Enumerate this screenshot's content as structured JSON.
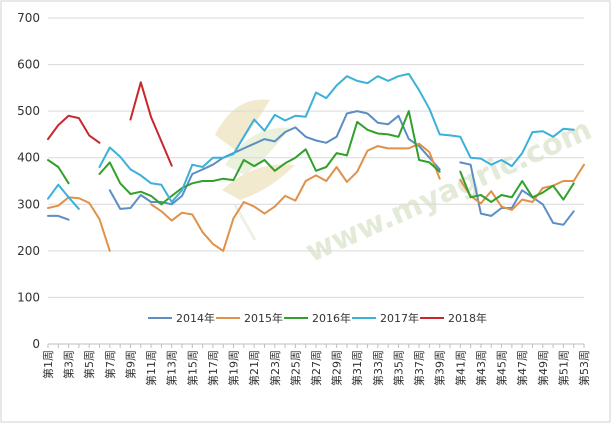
{
  "chart_data": {
    "type": "line",
    "ylim": [
      0,
      700
    ],
    "yticks": [
      "0",
      "100",
      "200",
      "300",
      "400",
      "500",
      "600",
      "700"
    ],
    "x": [
      1,
      2,
      3,
      4,
      5,
      6,
      7,
      8,
      9,
      10,
      11,
      12,
      13,
      14,
      15,
      16,
      17,
      18,
      19,
      20,
      21,
      22,
      23,
      24,
      25,
      26,
      27,
      28,
      29,
      30,
      31,
      32,
      33,
      34,
      35,
      36,
      37,
      38,
      39,
      40,
      41,
      42,
      43,
      44,
      45,
      46,
      47,
      48,
      49,
      50,
      51,
      52,
      53
    ],
    "xtick_labels": [
      "第1周",
      "第3周",
      "第5周",
      "第7周",
      "第9周",
      "第11周",
      "第13周",
      "第15周",
      "第17周",
      "第19周",
      "第21周",
      "第23周",
      "第25周",
      "第27周",
      "第29周",
      "第31周",
      "第33周",
      "第35周",
      "第37周",
      "第39周",
      "第41周",
      "第43周",
      "第45周",
      "第47周",
      "第49周",
      "第51周",
      "第53周"
    ],
    "grid": true,
    "legend_position": "bottom-inside",
    "watermark": "www.myagric.com",
    "series": [
      {
        "name": "2014年",
        "color": "#5b8ec4",
        "values": [
          275,
          275,
          267,
          null,
          null,
          null,
          330,
          290,
          292,
          320,
          305,
          305,
          300,
          318,
          365,
          375,
          385,
          400,
          410,
          420,
          430,
          440,
          435,
          455,
          465,
          445,
          437,
          432,
          445,
          495,
          500,
          495,
          475,
          472,
          490,
          440,
          425,
          400,
          375,
          null,
          390,
          385,
          280,
          275,
          292,
          292,
          330,
          315,
          300,
          260,
          256,
          285,
          null
        ]
      },
      {
        "name": "2015年",
        "color": "#e0914a",
        "values": [
          292,
          297,
          315,
          313,
          303,
          268,
          200,
          null,
          null,
          null,
          300,
          285,
          265,
          282,
          278,
          240,
          215,
          200,
          270,
          305,
          295,
          280,
          295,
          318,
          308,
          350,
          362,
          350,
          380,
          348,
          370,
          415,
          425,
          420,
          420,
          420,
          430,
          412,
          355,
          null,
          352,
          318,
          302,
          328,
          295,
          288,
          310,
          305,
          335,
          340,
          350,
          350,
          385
        ]
      },
      {
        "name": "2016年",
        "color": "#33a02c",
        "values": [
          395,
          380,
          345,
          null,
          null,
          365,
          390,
          345,
          322,
          327,
          318,
          300,
          318,
          335,
          345,
          350,
          350,
          355,
          352,
          395,
          382,
          395,
          372,
          388,
          400,
          418,
          372,
          380,
          410,
          405,
          477,
          460,
          452,
          450,
          445,
          500,
          395,
          390,
          370,
          null,
          370,
          315,
          320,
          305,
          320,
          315,
          350,
          315,
          325,
          340,
          310,
          345,
          null
        ]
      },
      {
        "name": "2017年",
        "color": "#3bb0d8",
        "values": [
          312,
          342,
          315,
          290,
          null,
          380,
          422,
          402,
          375,
          362,
          345,
          342,
          305,
          330,
          385,
          380,
          400,
          400,
          408,
          445,
          482,
          458,
          492,
          480,
          490,
          488,
          540,
          528,
          555,
          575,
          565,
          560,
          575,
          565,
          575,
          580,
          545,
          505,
          450,
          448,
          445,
          400,
          398,
          385,
          395,
          382,
          410,
          455,
          457,
          445,
          462,
          460,
          null
        ]
      },
      {
        "name": "2018年",
        "color": "#c8272c",
        "values": [
          440,
          470,
          490,
          485,
          448,
          432,
          null,
          null,
          482,
          562,
          487,
          435,
          383,
          null,
          null,
          null,
          null,
          null,
          null,
          null,
          null,
          null,
          null,
          null,
          null,
          null,
          null,
          null,
          null,
          null,
          null,
          null,
          null,
          null,
          null,
          null,
          null,
          null,
          null,
          null,
          null,
          null,
          null,
          null,
          null,
          null,
          null,
          null,
          null,
          null,
          null,
          null,
          null
        ]
      }
    ]
  }
}
